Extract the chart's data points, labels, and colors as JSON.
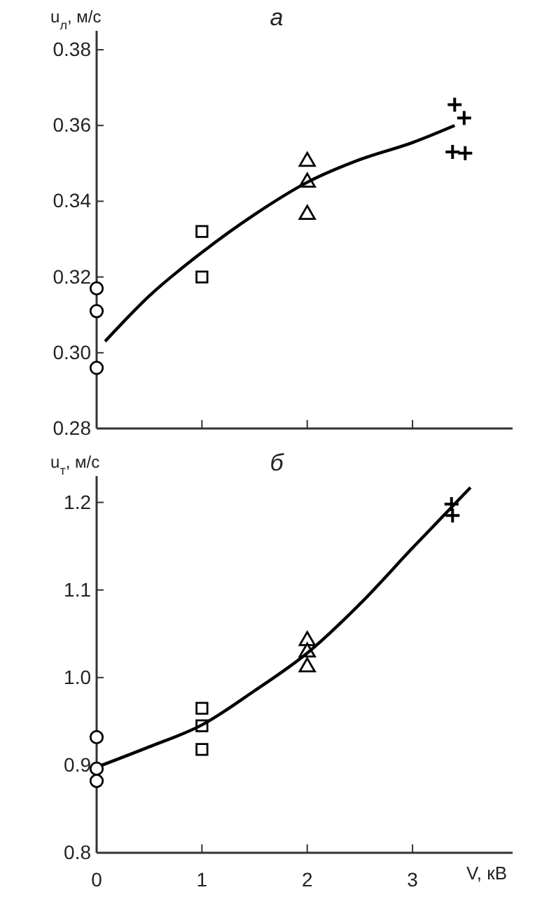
{
  "chart_data": [
    {
      "type": "scatter",
      "title": "а",
      "ylabel": "u$_{л}$, м/с",
      "xlim": [
        0,
        3.95
      ],
      "xticks": [
        0,
        1,
        2,
        3
      ],
      "ylim": [
        0.28,
        0.385
      ],
      "yticks": [
        {
          "value": 0.28,
          "label": "0.28"
        },
        {
          "value": 0.3,
          "label": "0.30"
        },
        {
          "value": 0.32,
          "label": "0.32"
        },
        {
          "value": 0.34,
          "label": "0.34"
        },
        {
          "value": 0.36,
          "label": "0.36"
        },
        {
          "value": 0.38,
          "label": "0.38"
        }
      ],
      "tick_labels": "y",
      "grid": false,
      "series": [
        {
          "type": "scatter",
          "marker": "circle",
          "color": "#000000",
          "x": [
            0,
            0,
            0
          ],
          "values": [
            0.317,
            0.311,
            0.296
          ]
        },
        {
          "type": "scatter",
          "marker": "square",
          "color": "#000000",
          "x": [
            1,
            1
          ],
          "values": [
            0.332,
            0.32
          ]
        },
        {
          "type": "scatter",
          "marker": "triangle",
          "color": "#000000",
          "x": [
            2,
            2,
            2
          ],
          "values": [
            0.3505,
            0.345,
            0.3365
          ]
        },
        {
          "type": "scatter",
          "marker": "cross",
          "color": "#000000",
          "x": [
            3.4,
            3.49,
            3.38,
            3.5
          ],
          "values": [
            0.3655,
            0.362,
            0.353,
            0.3527
          ]
        },
        {
          "type": "line",
          "marker": "none",
          "line_style": "solid",
          "color": "#000000",
          "x": [
            0.08,
            0.5,
            1,
            1.5,
            2,
            2.5,
            3,
            3.4
          ],
          "values": [
            0.303,
            0.315,
            0.3265,
            0.3365,
            0.345,
            0.351,
            0.3555,
            0.36
          ]
        }
      ]
    },
    {
      "type": "scatter",
      "title": "б",
      "ylabel": "u$_{т}$, м/с",
      "xlabel": "V, кВ",
      "xlim": [
        0,
        3.95
      ],
      "xticks": [
        0,
        1,
        2,
        3
      ],
      "ylim": [
        0.8,
        1.23
      ],
      "yticks": [
        {
          "value": 0.8,
          "label": "0.8"
        },
        {
          "value": 0.9,
          "label": "0.9"
        },
        {
          "value": 1.0,
          "label": "1.0"
        },
        {
          "value": 1.1,
          "label": "1.1"
        },
        {
          "value": 1.2,
          "label": "1.2"
        }
      ],
      "grid": false,
      "series": [
        {
          "type": "scatter",
          "marker": "circle",
          "color": "#000000",
          "x": [
            0,
            0,
            0
          ],
          "values": [
            0.932,
            0.896,
            0.882
          ]
        },
        {
          "type": "scatter",
          "marker": "square",
          "color": "#000000",
          "x": [
            1,
            1,
            1
          ],
          "values": [
            0.965,
            0.945,
            0.918
          ]
        },
        {
          "type": "scatter",
          "marker": "triangle",
          "color": "#000000",
          "x": [
            2,
            2,
            2
          ],
          "values": [
            1.042,
            1.029,
            1.012
          ]
        },
        {
          "type": "scatter",
          "marker": "cross",
          "color": "#000000",
          "x": [
            3.37,
            3.38
          ],
          "values": [
            1.198,
            1.185
          ]
        },
        {
          "type": "line",
          "marker": "none",
          "line_style": "solid",
          "color": "#000000",
          "x": [
            0.05,
            0.5,
            1,
            1.5,
            2,
            2.5,
            3,
            3.55
          ],
          "values": [
            0.9,
            0.921,
            0.946,
            0.985,
            1.028,
            1.084,
            1.148,
            1.217
          ]
        }
      ]
    }
  ]
}
